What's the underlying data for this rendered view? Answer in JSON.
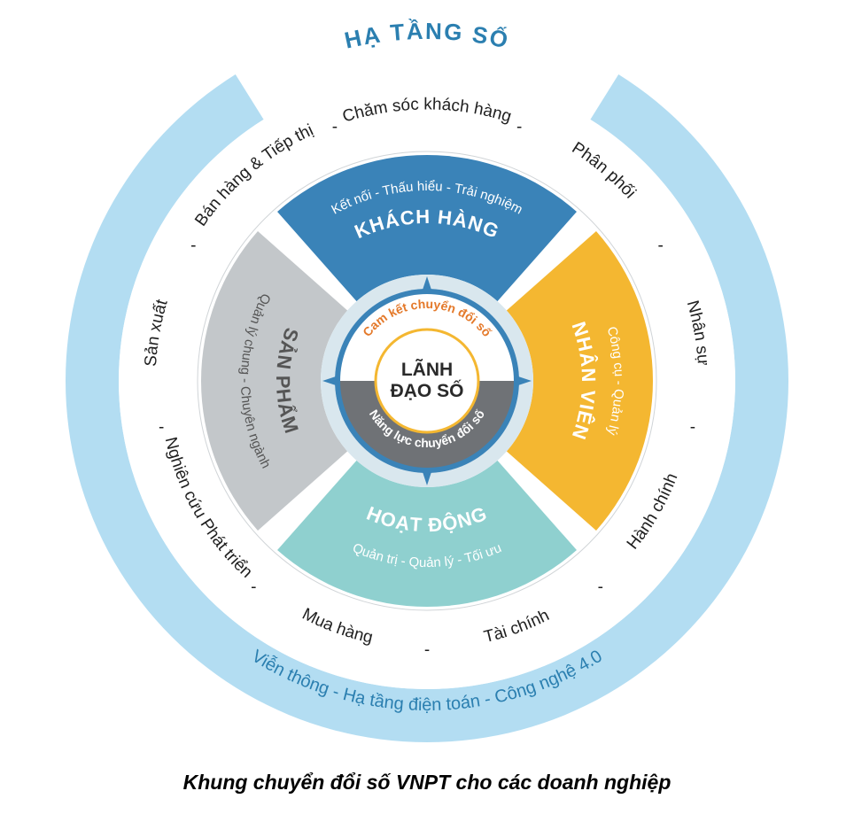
{
  "caption": "Khung chuyển đổi số VNPT cho các doanh nghiệp",
  "diagram": {
    "type": "radial-multi-ring",
    "size": 820,
    "background": "#ffffff",
    "outer_ring": {
      "title": "HẠ TẦNG SỐ",
      "title_color": "#2b7fb0",
      "title_fontsize": 26,
      "title_fontweight": "700",
      "fill": "#b3ddf2",
      "stroke": "#b3ddf2",
      "r_outer": 408,
      "r_inner": 348,
      "items": [
        "Viễn thông",
        "Hạ tầng điện toán",
        "Công nghệ 4.0"
      ],
      "item_color": "#2b7fb0",
      "item_fontsize": 20,
      "item_fontweight": "400"
    },
    "middle_ring": {
      "fill": "#ffffff",
      "r_outer": 348,
      "r_inner": 255,
      "item_color": "#1f1f1f",
      "item_fontsize": 19,
      "item_fontweight": "400",
      "separator": "-",
      "items": [
        "Chăm sóc khách hàng",
        "Phân phối",
        "Nhân sự",
        "Hành chính",
        "Tài chính",
        "Mua hàng",
        "Nghiên cứu Phát triển",
        "Sản xuất",
        "Bán hàng & Tiếp thị"
      ]
    },
    "quadrants": {
      "r_outer": 255,
      "r_inner": 120,
      "gap_deg": 7,
      "title_fontsize": 22,
      "title_fontweight": "700",
      "sub_fontsize": 15,
      "sub_fontweight": "400",
      "text_color_light": "#ffffff",
      "text_color_dark": "#555555",
      "segments": [
        {
          "key": "customer",
          "center_deg": -90,
          "fill": "#3a83b8",
          "title": "KHÁCH HÀNG",
          "subtitle": "Kết nối - Thấu hiểu - Trải nghiệm",
          "text": "light"
        },
        {
          "key": "employee",
          "center_deg": 0,
          "fill": "#f4b731",
          "title": "NHÂN VIÊN",
          "subtitle": "Công cụ - Quản lý",
          "text": "light"
        },
        {
          "key": "operation",
          "center_deg": 90,
          "fill": "#8fd0cf",
          "title": "HOẠT ĐỘNG",
          "subtitle": "Quản trị - Quản lý - Tối ưu",
          "text": "light"
        },
        {
          "key": "product",
          "center_deg": 180,
          "fill": "#c3c7ca",
          "title": "SẢN PHẨM",
          "subtitle": "Quản lý chung - Chuyên ngành",
          "text": "dark"
        }
      ]
    },
    "inner_gap_ring": {
      "r_outer": 120,
      "r_inner": 104,
      "fill": "#d9e7ee"
    },
    "compass": {
      "r": 104,
      "fill": "#3a83b8"
    },
    "core_halves": {
      "r_outer": 98,
      "r_inner": 58,
      "top": {
        "fill": "#ffffff",
        "text": "Cam kết chuyển đổi số",
        "text_color": "#e4792a",
        "fontsize": 14,
        "fontweight": "700"
      },
      "bottom": {
        "fill": "#6f7276",
        "text": "Năng lực chuyển đổi số",
        "text_color": "#ffffff",
        "fontsize": 14,
        "fontweight": "700"
      }
    },
    "core_circle": {
      "r": 58,
      "fill": "#ffffff",
      "stroke": "#f4b731",
      "stroke_width": 3,
      "line1": "LÃNH",
      "line2": "ĐẠO SỐ",
      "text_color": "#2a2a2a",
      "fontsize": 21,
      "fontweight": "800"
    }
  }
}
